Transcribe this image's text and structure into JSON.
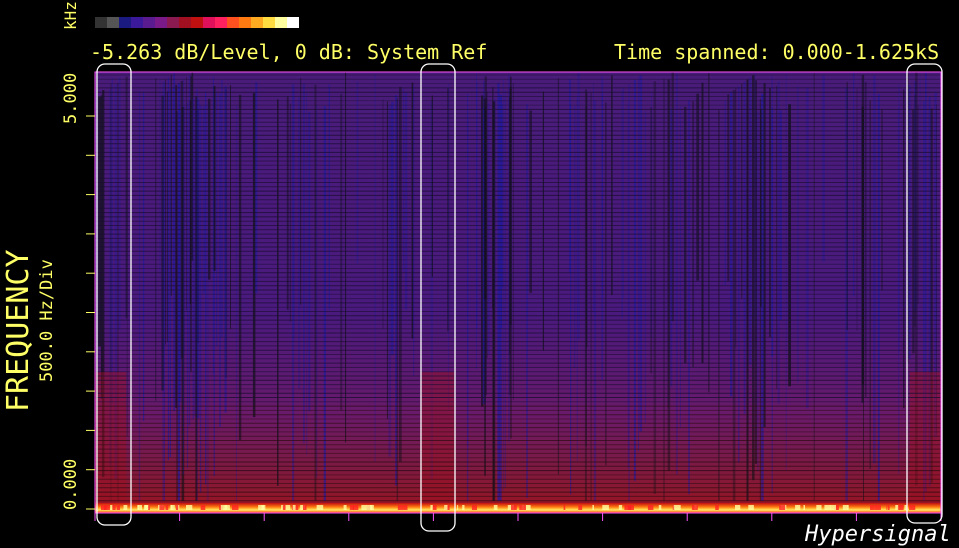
{
  "header": {
    "unit_label": "kHz",
    "level_text": "-5.263 dB/Level, 0 dB: System Ref",
    "time_text": "Time spanned: 0.000-1.625kS"
  },
  "axis": {
    "ylabel": "FREQUENCY",
    "ydiv": "500.0 Hz/Div",
    "ytop_label": "5.000",
    "ybottom_label": "0.000"
  },
  "brand": "Hypersignal",
  "colors": {
    "background": "#000000",
    "frame": "#ff55ff",
    "text": "#ffff66",
    "highlight_box": "#ffffff",
    "palette": [
      "#333333",
      "#555555",
      "#1a1a80",
      "#3a1a9a",
      "#5a1a90",
      "#7a1a88",
      "#8a1a50",
      "#a01020",
      "#c01010",
      "#e0105a",
      "#ff2060",
      "#ff5020",
      "#ff7a10",
      "#ffaa20",
      "#ffdd40",
      "#ffffa0",
      "#ffffff"
    ]
  },
  "chart_data": {
    "type": "heatmap",
    "title": "",
    "xlabel": "",
    "ylabel": "FREQUENCY",
    "x_range_kS": [
      0.0,
      1.625
    ],
    "y_range_kHz": [
      0.0,
      5.0
    ],
    "y_division_hz": 500.0,
    "db_per_level": -5.263,
    "reference": "0 dB: System Ref",
    "color_levels": 17,
    "highlighted_time_regions_kS": [
      [
        0.0,
        0.06
      ],
      [
        0.625,
        0.69
      ],
      [
        1.565,
        1.625
      ]
    ],
    "description_bands": [
      {
        "freq_kHz": [
          0.0,
          0.05
        ],
        "level": "peak"
      },
      {
        "freq_kHz": [
          0.05,
          0.5
        ],
        "level": "high"
      },
      {
        "freq_kHz": [
          0.5,
          5.0
        ],
        "level": "low"
      }
    ]
  }
}
